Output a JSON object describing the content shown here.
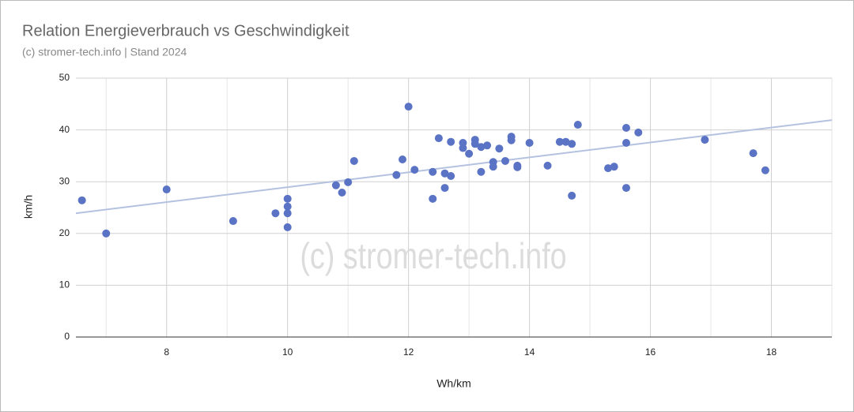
{
  "chart_data": {
    "type": "scatter",
    "title": "Relation Energieverbrauch vs Geschwindigkeit",
    "subtitle": "(c) stromer-tech.info | Stand 2024",
    "watermark": "(c) stromer-tech.info",
    "x_label": "Wh/km",
    "y_label": "km/h",
    "xlim": [
      6.5,
      19
    ],
    "ylim": [
      0,
      50
    ],
    "xticks": [
      8,
      10,
      12,
      14,
      16,
      18
    ],
    "x_minor_ticks": [
      7,
      9,
      11,
      13,
      15,
      17,
      19
    ],
    "yticks": [
      0,
      10,
      20,
      30,
      40,
      50
    ],
    "grid": true,
    "series": [
      {
        "color": "#5a73c4",
        "x": [
          6.6,
          7.0,
          8.0,
          9.1,
          9.8,
          10.0,
          10.0,
          10.0,
          10.0,
          10.8,
          10.9,
          11.0,
          11.1,
          11.8,
          11.9,
          12.0,
          12.1,
          12.4,
          12.4,
          12.5,
          12.6,
          12.6,
          12.7,
          12.7,
          12.9,
          12.9,
          13.0,
          13.1,
          13.1,
          13.2,
          13.2,
          13.3,
          13.4,
          13.4,
          13.5,
          13.6,
          13.7,
          13.7,
          13.8,
          13.8,
          14.0,
          14.3,
          14.5,
          14.6,
          14.7,
          14.7,
          14.8,
          15.3,
          15.4,
          15.6,
          15.6,
          15.6,
          15.8,
          16.9,
          17.7,
          17.9
        ],
        "values": [
          26.4,
          20.0,
          28.5,
          22.4,
          23.9,
          26.7,
          25.2,
          23.9,
          21.2,
          29.3,
          27.9,
          29.9,
          34.0,
          31.3,
          34.3,
          44.5,
          32.3,
          31.9,
          26.7,
          38.4,
          31.6,
          28.8,
          37.7,
          31.1,
          37.5,
          36.5,
          35.4,
          38.1,
          37.3,
          36.7,
          31.9,
          37.0,
          33.8,
          32.9,
          36.4,
          34.0,
          38.7,
          38.0,
          33.1,
          32.8,
          37.5,
          33.1,
          37.7,
          37.7,
          37.3,
          27.3,
          41.0,
          32.6,
          32.9,
          40.4,
          37.5,
          28.8,
          39.5,
          38.1,
          35.5,
          32.2
        ]
      }
    ],
    "trendline": {
      "color": "#b4c2e0",
      "x": [
        6.5,
        19
      ],
      "values": [
        23.9,
        41.9
      ]
    }
  }
}
